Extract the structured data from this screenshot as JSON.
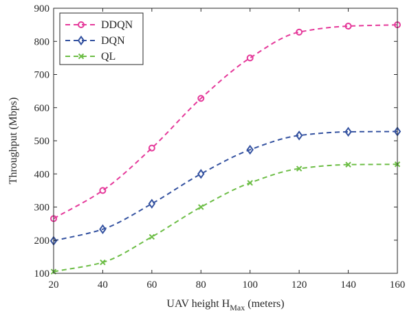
{
  "chart_data": {
    "type": "line",
    "title": "",
    "xlabel": {
      "prefix": "UAV height H",
      "subscript": "Max",
      "suffix": " (meters)"
    },
    "ylabel": "Throughput (Mbps)",
    "xlim": [
      20,
      160
    ],
    "ylim": [
      100,
      900
    ],
    "xticks": [
      20,
      40,
      60,
      80,
      100,
      120,
      140,
      160
    ],
    "yticks": [
      100,
      200,
      300,
      400,
      500,
      600,
      700,
      800,
      900
    ],
    "grid": false,
    "legend_position": "top-left",
    "x": [
      20,
      40,
      60,
      80,
      100,
      120,
      140,
      160
    ],
    "series": [
      {
        "name": "DDQN",
        "color": "#e5399a",
        "marker": "circle",
        "line_style": "dashed",
        "values": [
          265,
          350,
          478,
          628,
          750,
          828,
          846,
          850
        ]
      },
      {
        "name": "DQN",
        "color": "#3452a0",
        "marker": "diamond",
        "line_style": "dashed",
        "values": [
          198,
          233,
          310,
          400,
          473,
          516,
          527,
          528
        ]
      },
      {
        "name": "QL",
        "color": "#6cbd45",
        "marker": "x",
        "line_style": "dashed",
        "values": [
          105,
          133,
          210,
          300,
          373,
          416,
          428,
          429
        ]
      }
    ]
  }
}
